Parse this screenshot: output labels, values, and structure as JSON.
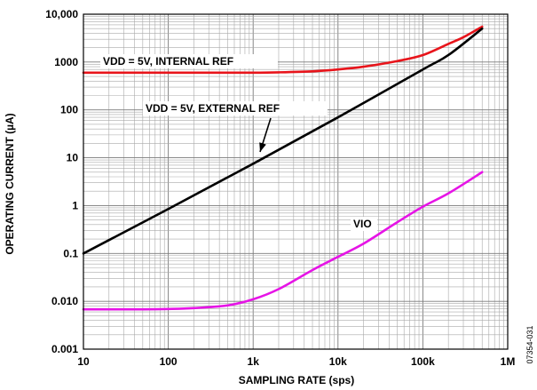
{
  "chart_data": {
    "type": "line",
    "xlabel": "SAMPLING RATE (sps)",
    "ylabel": "OPERATING CURRENT (µA)",
    "x_scale": "log",
    "y_scale": "log",
    "xlim": [
      10,
      1000000
    ],
    "ylim": [
      0.001,
      10000
    ],
    "grid": true,
    "x_ticks": [
      {
        "value": 10,
        "label": "10"
      },
      {
        "value": 100,
        "label": "100"
      },
      {
        "value": 1000,
        "label": "1k"
      },
      {
        "value": 10000,
        "label": "10k"
      },
      {
        "value": 100000,
        "label": "100k"
      },
      {
        "value": 1000000,
        "label": "1M"
      }
    ],
    "y_ticks": [
      {
        "value": 0.001,
        "label": "0.001"
      },
      {
        "value": 0.01,
        "label": "0.010"
      },
      {
        "value": 0.1,
        "label": "0.1"
      },
      {
        "value": 1,
        "label": "1"
      },
      {
        "value": 10,
        "label": "10"
      },
      {
        "value": 100,
        "label": "100"
      },
      {
        "value": 1000,
        "label": "1000"
      },
      {
        "value": 10000,
        "label": "10,000"
      }
    ],
    "series": [
      {
        "name": "VDD = 5V, INTERNAL REF",
        "color": "#e8141b",
        "x": [
          10,
          20,
          50,
          100,
          200,
          500,
          1000,
          2000,
          5000,
          10000,
          20000,
          50000,
          100000,
          200000,
          300000,
          500000
        ],
        "y": [
          600,
          600,
          600,
          600,
          600,
          600,
          600,
          610,
          640,
          700,
          800,
          1050,
          1400,
          2400,
          3300,
          5500
        ]
      },
      {
        "name": "VDD = 5V, EXTERNAL REF",
        "color": "#000000",
        "x": [
          10,
          100,
          1000,
          10000,
          100000,
          200000,
          500000
        ],
        "y": [
          0.1,
          0.85,
          7.5,
          70,
          700,
          1400,
          5000
        ]
      },
      {
        "name": "VIO",
        "color": "#e614e6",
        "x": [
          10,
          20,
          50,
          100,
          200,
          500,
          1000,
          2000,
          5000,
          10000,
          20000,
          50000,
          100000,
          200000,
          500000
        ],
        "y": [
          0.0068,
          0.0068,
          0.0068,
          0.0069,
          0.0072,
          0.0082,
          0.011,
          0.018,
          0.045,
          0.085,
          0.16,
          0.45,
          0.95,
          1.8,
          5.0
        ]
      }
    ],
    "annotations": [
      {
        "text": "VDD = 5V, INTERNAL REF",
        "series": "VDD = 5V, INTERNAL REF"
      },
      {
        "text": "VDD = 5V, EXTERNAL REF",
        "series": "VDD = 5V, EXTERNAL REF"
      },
      {
        "text": "VIO",
        "series": "VIO"
      }
    ]
  },
  "figure_id": "07354-031"
}
